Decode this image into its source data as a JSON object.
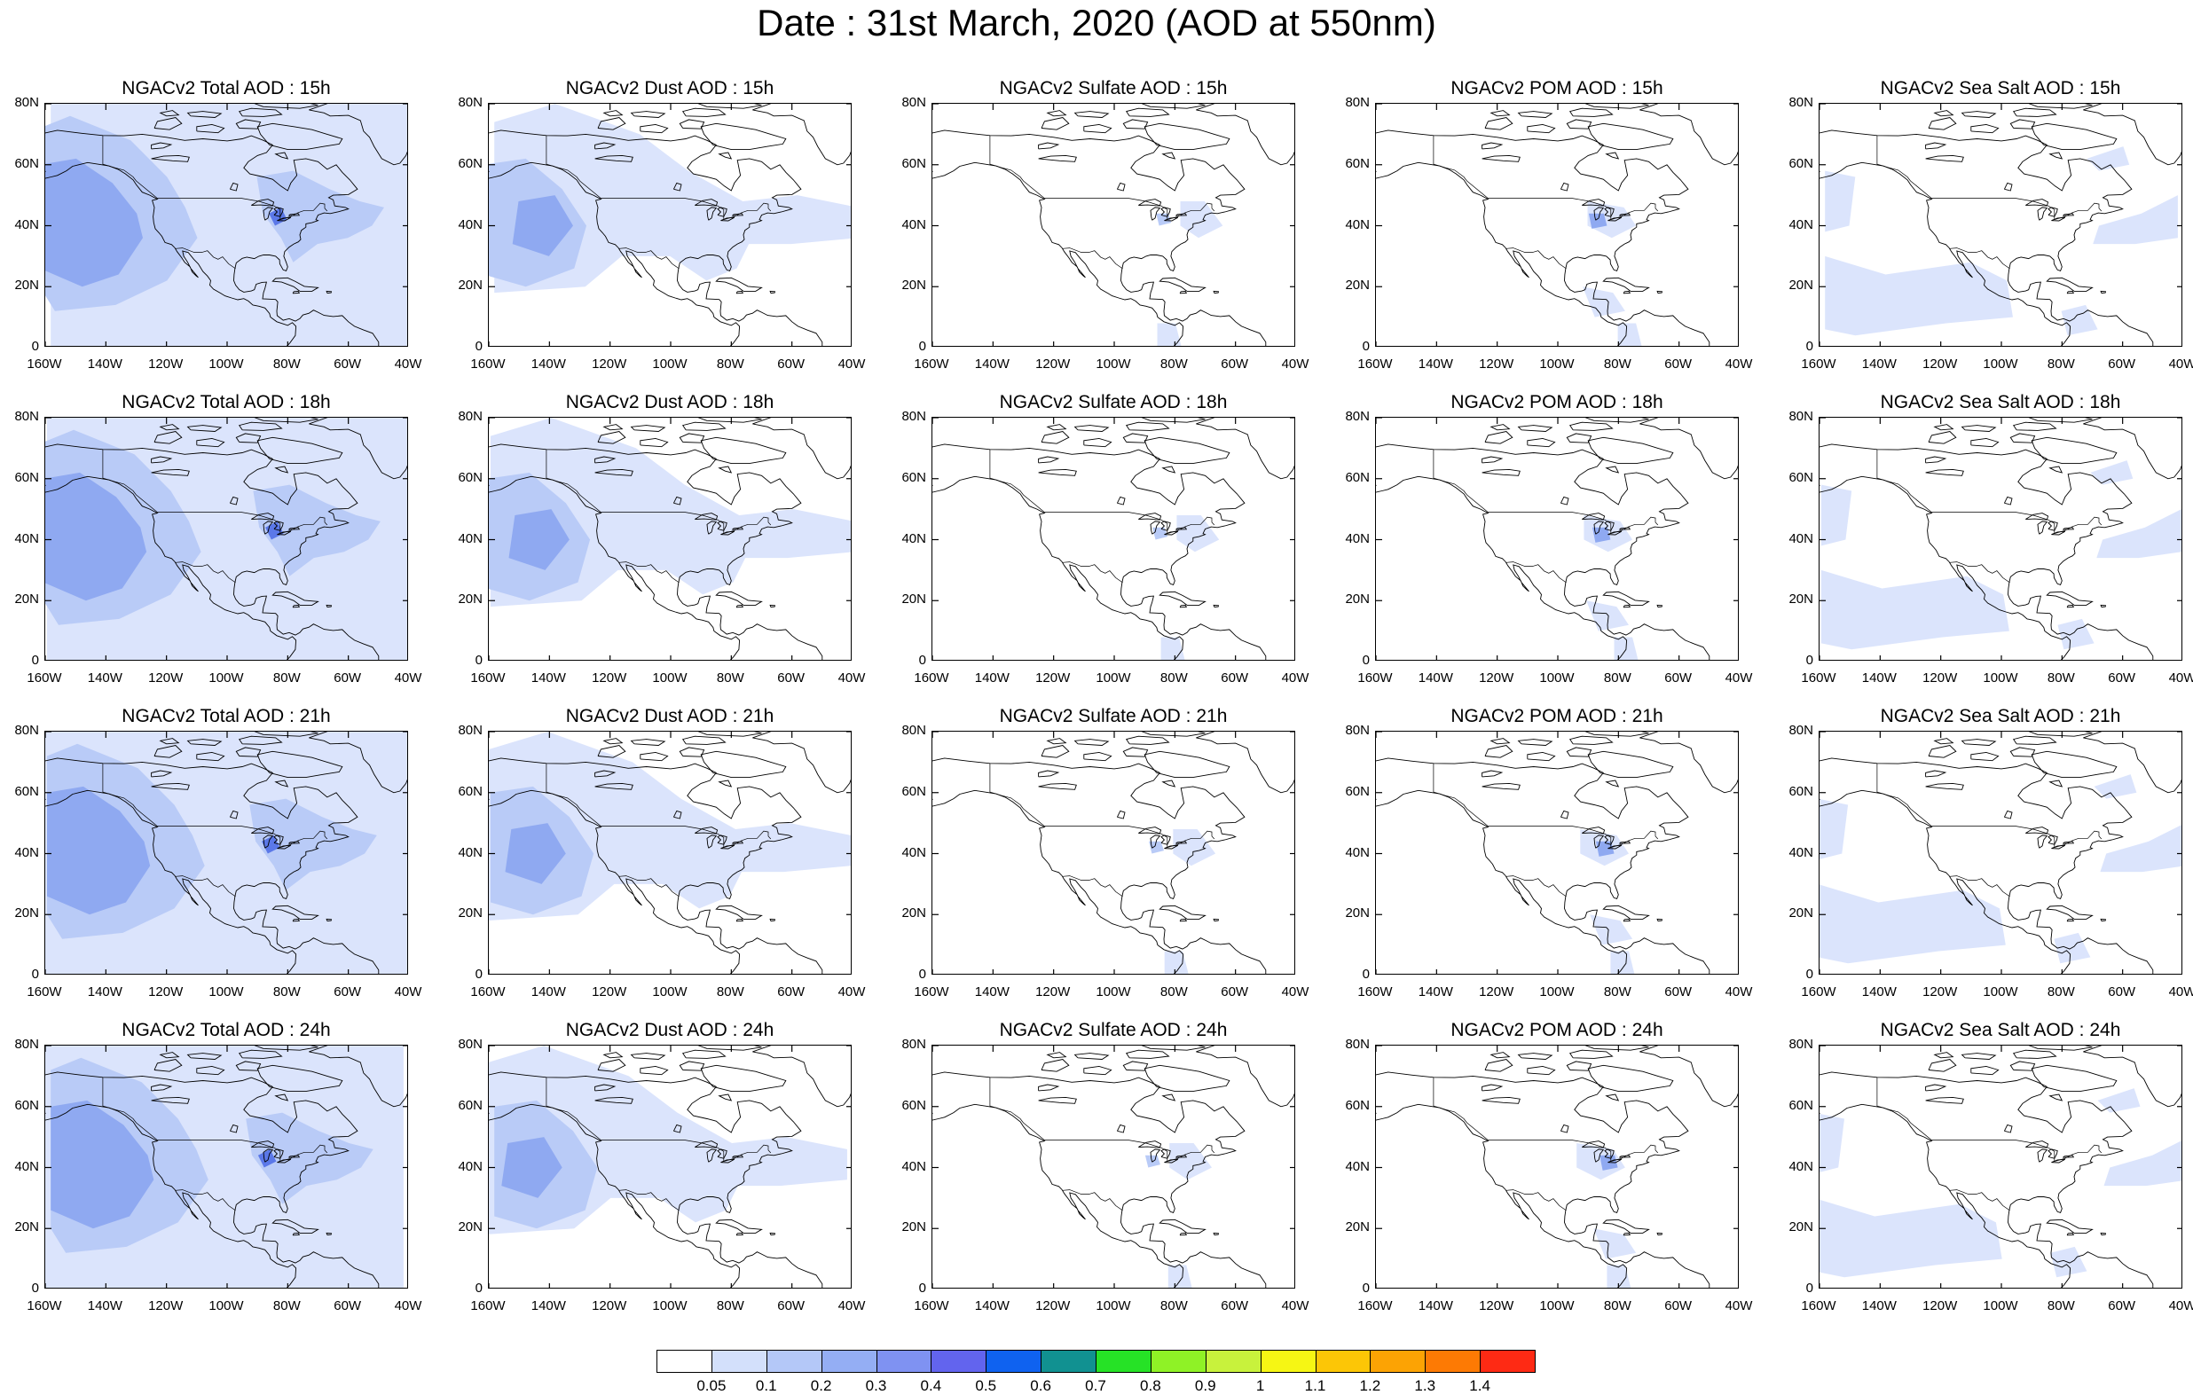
{
  "page_title": "Date : 31st March, 2020 (AOD at 550nm)",
  "panels": [
    [
      "NGACv2 Total AOD : 15h",
      "NGACv2 Dust AOD : 15h",
      "NGACv2 Sulfate AOD : 15h",
      "NGACv2 POM AOD : 15h",
      "NGACv2 Sea Salt AOD : 15h"
    ],
    [
      "NGACv2 Total AOD : 18h",
      "NGACv2 Dust AOD : 18h",
      "NGACv2 Sulfate AOD : 18h",
      "NGACv2 POM AOD : 18h",
      "NGACv2 Sea Salt AOD : 18h"
    ],
    [
      "NGACv2 Total AOD : 21h",
      "NGACv2 Dust AOD : 21h",
      "NGACv2 Sulfate AOD : 21h",
      "NGACv2 POM AOD : 21h",
      "NGACv2 Sea Salt AOD : 21h"
    ],
    [
      "NGACv2 Total AOD : 24h",
      "NGACv2 Dust AOD : 24h",
      "NGACv2 Sulfate AOD : 24h",
      "NGACv2 POM AOD : 24h",
      "NGACv2 Sea Salt  AOD : 24h"
    ]
  ],
  "lon_ticks": [
    "160W",
    "140W",
    "120W",
    "100W",
    "80W",
    "60W",
    "40W"
  ],
  "lat_ticks": [
    "80N",
    "60N",
    "40N",
    "20N",
    "0"
  ],
  "colorbar": {
    "colors": [
      "#ffffff",
      "#d3e0fb",
      "#b4c8f8",
      "#94aef4",
      "#7f92f2",
      "#6264ee",
      "#0f62f0",
      "#119191",
      "#26e226",
      "#8ff226",
      "#c8f23c",
      "#f6f614",
      "#fcc606",
      "#fca304",
      "#fd7a04",
      "#fe2a14"
    ],
    "labels": [
      "0.05",
      "0.1",
      "0.2",
      "0.3",
      "0.4",
      "0.5",
      "0.6",
      "0.7",
      "0.8",
      "0.9",
      "1",
      "1.1",
      "1.2",
      "1.3",
      "1.4"
    ]
  }
}
